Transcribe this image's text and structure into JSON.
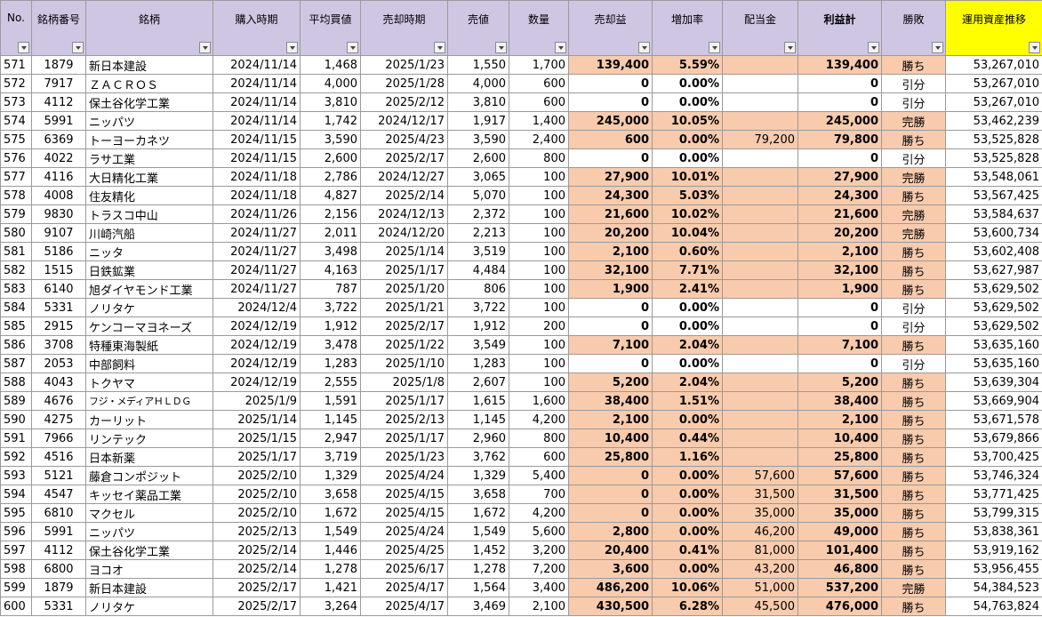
{
  "headers": [
    "No.",
    "銘柄番号",
    "銘柄",
    "購入時期",
    "平均買値",
    "売却時期",
    "売値",
    "数量",
    "売却益",
    "増加率",
    "配当金",
    "利益計",
    "勝敗",
    "運用資産推移"
  ],
  "rows": [
    {
      "no": "571",
      "code": "1879",
      "name": "新日本建設",
      "buy_date": "2024/11/14",
      "avg_price": "1,468",
      "sell_date": "2025/1/23",
      "sell_price": "1,550",
      "qty": "1,700",
      "gain": "139,400",
      "rate": "5.59%",
      "dividend": "",
      "total": "139,400",
      "result": "勝ち",
      "assets": "53,267,010"
    },
    {
      "no": "572",
      "code": "7917",
      "name": "ＺＡＣＲＯＳ",
      "buy_date": "2024/11/14",
      "avg_price": "4,000",
      "sell_date": "2025/1/28",
      "sell_price": "4,000",
      "qty": "600",
      "gain": "0",
      "rate": "0.00%",
      "dividend": "",
      "total": "0",
      "result": "引分",
      "assets": "53,267,010"
    },
    {
      "no": "573",
      "code": "4112",
      "name": "保土谷化学工業",
      "buy_date": "2024/11/14",
      "avg_price": "3,810",
      "sell_date": "2025/2/12",
      "sell_price": "3,810",
      "qty": "600",
      "gain": "0",
      "rate": "0.00%",
      "dividend": "",
      "total": "0",
      "result": "引分",
      "assets": "53,267,010"
    },
    {
      "no": "574",
      "code": "5991",
      "name": "ニッパツ",
      "buy_date": "2024/11/14",
      "avg_price": "1,742",
      "sell_date": "2024/12/17",
      "sell_price": "1,917",
      "qty": "1,400",
      "gain": "245,000",
      "rate": "10.05%",
      "dividend": "",
      "total": "245,000",
      "result": "完勝",
      "assets": "53,462,239"
    },
    {
      "no": "575",
      "code": "6369",
      "name": "トーヨーカネツ",
      "buy_date": "2024/11/15",
      "avg_price": "3,590",
      "sell_date": "2025/4/23",
      "sell_price": "3,590",
      "qty": "2,400",
      "gain": "600",
      "rate": "0.00%",
      "dividend": "79,200",
      "total": "79,800",
      "result": "勝ち",
      "assets": "53,525,828"
    },
    {
      "no": "576",
      "code": "4022",
      "name": "ラサ工業",
      "buy_date": "2024/11/15",
      "avg_price": "2,600",
      "sell_date": "2025/2/17",
      "sell_price": "2,600",
      "qty": "800",
      "gain": "0",
      "rate": "0.00%",
      "dividend": "",
      "total": "0",
      "result": "引分",
      "assets": "53,525,828"
    },
    {
      "no": "577",
      "code": "4116",
      "name": "大日精化工業",
      "buy_date": "2024/11/18",
      "avg_price": "2,786",
      "sell_date": "2024/12/27",
      "sell_price": "3,065",
      "qty": "100",
      "gain": "27,900",
      "rate": "10.01%",
      "dividend": "",
      "total": "27,900",
      "result": "完勝",
      "assets": "53,548,061"
    },
    {
      "no": "578",
      "code": "4008",
      "name": "住友精化",
      "buy_date": "2024/11/18",
      "avg_price": "4,827",
      "sell_date": "2025/2/14",
      "sell_price": "5,070",
      "qty": "100",
      "gain": "24,300",
      "rate": "5.03%",
      "dividend": "",
      "total": "24,300",
      "result": "勝ち",
      "assets": "53,567,425"
    },
    {
      "no": "579",
      "code": "9830",
      "name": "トラスコ中山",
      "buy_date": "2024/11/26",
      "avg_price": "2,156",
      "sell_date": "2024/12/13",
      "sell_price": "2,372",
      "qty": "100",
      "gain": "21,600",
      "rate": "10.02%",
      "dividend": "",
      "total": "21,600",
      "result": "完勝",
      "assets": "53,584,637"
    },
    {
      "no": "580",
      "code": "9107",
      "name": "川崎汽船",
      "buy_date": "2024/11/27",
      "avg_price": "2,011",
      "sell_date": "2024/12/20",
      "sell_price": "2,213",
      "qty": "100",
      "gain": "20,200",
      "rate": "10.04%",
      "dividend": "",
      "total": "20,200",
      "result": "完勝",
      "assets": "53,600,734"
    },
    {
      "no": "581",
      "code": "5186",
      "name": "ニッタ",
      "buy_date": "2024/11/27",
      "avg_price": "3,498",
      "sell_date": "2025/1/14",
      "sell_price": "3,519",
      "qty": "100",
      "gain": "2,100",
      "rate": "0.60%",
      "dividend": "",
      "total": "2,100",
      "result": "勝ち",
      "assets": "53,602,408"
    },
    {
      "no": "582",
      "code": "1515",
      "name": "日鉄鉱業",
      "buy_date": "2024/11/27",
      "avg_price": "4,163",
      "sell_date": "2025/1/17",
      "sell_price": "4,484",
      "qty": "100",
      "gain": "32,100",
      "rate": "7.71%",
      "dividend": "",
      "total": "32,100",
      "result": "勝ち",
      "assets": "53,627,987"
    },
    {
      "no": "583",
      "code": "6140",
      "name": "旭ダイヤモンド工業",
      "buy_date": "2024/11/27",
      "avg_price": "787",
      "sell_date": "2025/1/20",
      "sell_price": "806",
      "qty": "100",
      "gain": "1,900",
      "rate": "2.41%",
      "dividend": "",
      "total": "1,900",
      "result": "勝ち",
      "assets": "53,629,502"
    },
    {
      "no": "584",
      "code": "5331",
      "name": "ノリタケ",
      "buy_date": "2024/12/4",
      "avg_price": "3,722",
      "sell_date": "2025/1/21",
      "sell_price": "3,722",
      "qty": "100",
      "gain": "0",
      "rate": "0.00%",
      "dividend": "",
      "total": "0",
      "result": "引分",
      "assets": "53,629,502"
    },
    {
      "no": "585",
      "code": "2915",
      "name": "ケンコーマヨネーズ",
      "buy_date": "2024/12/19",
      "avg_price": "1,912",
      "sell_date": "2025/2/17",
      "sell_price": "1,912",
      "qty": "200",
      "gain": "0",
      "rate": "0.00%",
      "dividend": "",
      "total": "0",
      "result": "引分",
      "assets": "53,629,502"
    },
    {
      "no": "586",
      "code": "3708",
      "name": "特種東海製紙",
      "buy_date": "2024/12/19",
      "avg_price": "3,478",
      "sell_date": "2025/1/22",
      "sell_price": "3,549",
      "qty": "100",
      "gain": "7,100",
      "rate": "2.04%",
      "dividend": "",
      "total": "7,100",
      "result": "勝ち",
      "assets": "53,635,160"
    },
    {
      "no": "587",
      "code": "2053",
      "name": "中部飼料",
      "buy_date": "2024/12/19",
      "avg_price": "1,283",
      "sell_date": "2025/1/10",
      "sell_price": "1,283",
      "qty": "100",
      "gain": "0",
      "rate": "0.00%",
      "dividend": "",
      "total": "0",
      "result": "引分",
      "assets": "53,635,160"
    },
    {
      "no": "588",
      "code": "4043",
      "name": "トクヤマ",
      "buy_date": "2024/12/19",
      "avg_price": "2,555",
      "sell_date": "2025/1/8",
      "sell_price": "2,607",
      "qty": "100",
      "gain": "5,200",
      "rate": "2.04%",
      "dividend": "",
      "total": "5,200",
      "result": "勝ち",
      "assets": "53,639,304"
    },
    {
      "no": "589",
      "code": "4676",
      "name": "フジ・メディアＨＬＤＧ",
      "buy_date": "2025/1/9",
      "avg_price": "1,591",
      "sell_date": "2025/1/17",
      "sell_price": "1,615",
      "qty": "1,600",
      "gain": "38,400",
      "rate": "1.51%",
      "dividend": "",
      "total": "38,400",
      "result": "勝ち",
      "assets": "53,669,904"
    },
    {
      "no": "590",
      "code": "4275",
      "name": "カーリット",
      "buy_date": "2025/1/14",
      "avg_price": "1,145",
      "sell_date": "2025/2/13",
      "sell_price": "1,145",
      "qty": "4,200",
      "gain": "2,100",
      "rate": "0.00%",
      "dividend": "",
      "total": "2,100",
      "result": "勝ち",
      "assets": "53,671,578"
    },
    {
      "no": "591",
      "code": "7966",
      "name": "リンテック",
      "buy_date": "2025/1/15",
      "avg_price": "2,947",
      "sell_date": "2025/1/17",
      "sell_price": "2,960",
      "qty": "800",
      "gain": "10,400",
      "rate": "0.44%",
      "dividend": "",
      "total": "10,400",
      "result": "勝ち",
      "assets": "53,679,866"
    },
    {
      "no": "592",
      "code": "4516",
      "name": "日本新薬",
      "buy_date": "2025/1/17",
      "avg_price": "3,719",
      "sell_date": "2025/1/23",
      "sell_price": "3,762",
      "qty": "600",
      "gain": "25,800",
      "rate": "1.16%",
      "dividend": "",
      "total": "25,800",
      "result": "勝ち",
      "assets": "53,700,425"
    },
    {
      "no": "593",
      "code": "5121",
      "name": "藤倉コンポジット",
      "buy_date": "2025/2/10",
      "avg_price": "1,329",
      "sell_date": "2025/4/24",
      "sell_price": "1,329",
      "qty": "5,400",
      "gain": "0",
      "rate": "0.00%",
      "dividend": "57,600",
      "total": "57,600",
      "result": "勝ち",
      "assets": "53,746,324"
    },
    {
      "no": "594",
      "code": "4547",
      "name": "キッセイ薬品工業",
      "buy_date": "2025/2/10",
      "avg_price": "3,658",
      "sell_date": "2025/4/15",
      "sell_price": "3,658",
      "qty": "700",
      "gain": "0",
      "rate": "0.00%",
      "dividend": "31,500",
      "total": "31,500",
      "result": "勝ち",
      "assets": "53,771,425"
    },
    {
      "no": "595",
      "code": "6810",
      "name": "マクセル",
      "buy_date": "2025/2/10",
      "avg_price": "1,672",
      "sell_date": "2025/4/15",
      "sell_price": "1,672",
      "qty": "4,200",
      "gain": "0",
      "rate": "0.00%",
      "dividend": "35,000",
      "total": "35,000",
      "result": "勝ち",
      "assets": "53,799,315"
    },
    {
      "no": "596",
      "code": "5991",
      "name": "ニッパツ",
      "buy_date": "2025/2/13",
      "avg_price": "1,549",
      "sell_date": "2025/4/24",
      "sell_price": "1,549",
      "qty": "5,600",
      "gain": "2,800",
      "rate": "0.00%",
      "dividend": "46,200",
      "total": "49,000",
      "result": "勝ち",
      "assets": "53,838,361"
    },
    {
      "no": "597",
      "code": "4112",
      "name": "保土谷化学工業",
      "buy_date": "2025/2/14",
      "avg_price": "1,446",
      "sell_date": "2025/4/25",
      "sell_price": "1,452",
      "qty": "3,200",
      "gain": "20,400",
      "rate": "0.41%",
      "dividend": "81,000",
      "total": "101,400",
      "result": "勝ち",
      "assets": "53,919,162"
    },
    {
      "no": "598",
      "code": "6800",
      "name": "ヨコオ",
      "buy_date": "2025/2/14",
      "avg_price": "1,278",
      "sell_date": "2025/6/17",
      "sell_price": "1,278",
      "qty": "7,200",
      "gain": "3,600",
      "rate": "0.00%",
      "dividend": "43,200",
      "total": "46,800",
      "result": "勝ち",
      "assets": "53,956,455"
    },
    {
      "no": "599",
      "code": "1879",
      "name": "新日本建設",
      "buy_date": "2025/2/17",
      "avg_price": "1,421",
      "sell_date": "2025/4/17",
      "sell_price": "1,564",
      "qty": "3,400",
      "gain": "486,200",
      "rate": "10.06%",
      "dividend": "51,000",
      "total": "537,200",
      "result": "完勝",
      "assets": "54,384,523"
    },
    {
      "no": "600",
      "code": "5331",
      "name": "ノリタケ",
      "buy_date": "2025/2/17",
      "avg_price": "3,264",
      "sell_date": "2025/4/17",
      "sell_price": "3,469",
      "qty": "2,100",
      "gain": "430,500",
      "rate": "6.28%",
      "dividend": "45,500",
      "total": "476,000",
      "result": "勝ち",
      "assets": "54,763,824"
    }
  ],
  "colors": {
    "header_bg": "#cfc6e3",
    "header_highlight": "#ffff00",
    "gain_fill": "#f8cbad",
    "grid": "#9a9a9a"
  }
}
